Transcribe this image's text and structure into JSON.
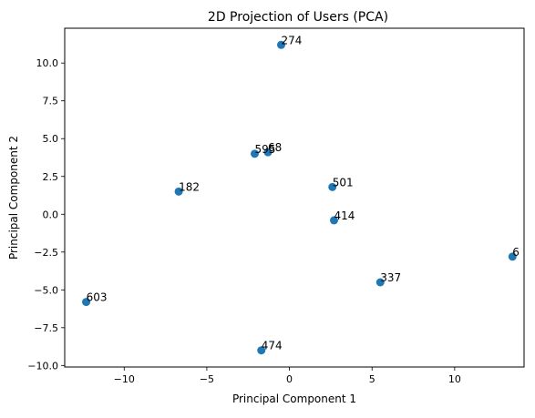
{
  "chart_data": {
    "type": "scatter",
    "title": "2D Projection of Users (PCA)",
    "xlabel": "Principal Component 1",
    "ylabel": "Principal Component 2",
    "xlim": [
      -13.6,
      14.2
    ],
    "ylim": [
      -10.1,
      12.3
    ],
    "grid": false,
    "xticks": [
      -10,
      -5,
      0,
      5,
      10
    ],
    "xtick_labels": [
      "−10",
      "−5",
      "0",
      "5",
      "10"
    ],
    "yticks": [
      -10.0,
      -7.5,
      -5.0,
      -2.5,
      0.0,
      2.5,
      5.0,
      7.5,
      10.0
    ],
    "ytick_labels": [
      "−10.0",
      "−7.5",
      "−5.0",
      "−2.5",
      "0.0",
      "2.5",
      "5.0",
      "7.5",
      "10.0"
    ],
    "marker_color": "#1f77b4",
    "points": [
      {
        "label": "274",
        "x": -0.5,
        "y": 11.2
      },
      {
        "label": "68",
        "x": -1.3,
        "y": 4.1
      },
      {
        "label": "595",
        "x": -2.1,
        "y": 4.0
      },
      {
        "label": "182",
        "x": -6.7,
        "y": 1.5
      },
      {
        "label": "501",
        "x": 2.6,
        "y": 1.8
      },
      {
        "label": "414",
        "x": 2.7,
        "y": -0.4
      },
      {
        "label": "6",
        "x": 13.5,
        "y": -2.8
      },
      {
        "label": "337",
        "x": 5.5,
        "y": -4.5
      },
      {
        "label": "603",
        "x": -12.3,
        "y": -5.8
      },
      {
        "label": "474",
        "x": -1.7,
        "y": -9.0
      }
    ]
  }
}
